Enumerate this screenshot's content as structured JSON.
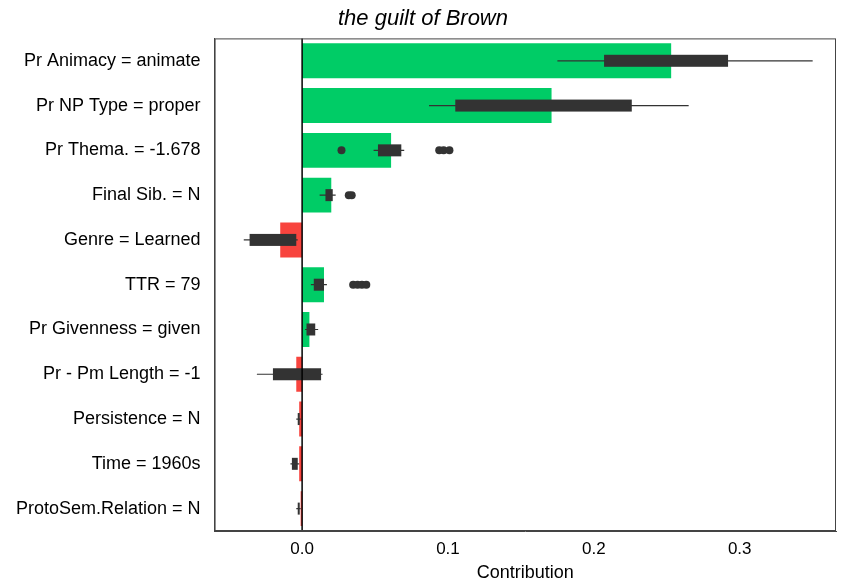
{
  "chart_data": {
    "type": "bar",
    "orientation": "horizontal",
    "title": "the guilt of Brown",
    "x_label": "Contribution",
    "categories": [
      "Pr Animacy = animate",
      "Pr NP Type = proper",
      "Pr Thema. = -1.678",
      "Final Sib. = N",
      "Genre = Learned",
      "TTR = 79",
      "Pr Givenness = given",
      "Pr - Pm Length = -1",
      "Persistence = N",
      "Time = 1960s",
      "ProtoSem.Relation = N"
    ],
    "values": [
      0.253,
      0.171,
      0.061,
      0.02,
      -0.015,
      0.015,
      0.005,
      -0.004,
      -0.002,
      -0.002,
      -0.001
    ],
    "colors": [
      "#00cc66",
      "#00cc66",
      "#00cc66",
      "#00cc66",
      "#f8443e",
      "#00cc66",
      "#00cc66",
      "#f8443e",
      "#f8443e",
      "#f8443e",
      "#f8443e"
    ],
    "whisker_low": [
      0.175,
      0.087,
      0.049,
      0.012,
      -0.04,
      0.006,
      0.002,
      -0.031,
      -0.004,
      -0.008,
      -0.004
    ],
    "box_low": [
      0.207,
      0.105,
      0.052,
      0.016,
      -0.036,
      0.008,
      0.003,
      -0.02,
      -0.003,
      -0.007,
      -0.003
    ],
    "box_high": [
      0.292,
      0.226,
      0.068,
      0.021,
      -0.004,
      0.015,
      0.009,
      0.013,
      -0.002,
      -0.003,
      -0.002
    ],
    "whisker_high": [
      0.35,
      0.265,
      0.07,
      0.023,
      -0.003,
      0.017,
      0.011,
      0.014,
      -0.001,
      -0.002,
      -0.001
    ],
    "outliers": [
      [],
      [],
      [
        0.027,
        0.094,
        0.097,
        0.101
      ],
      [
        0.032,
        0.034
      ],
      [],
      [
        0.035,
        0.038,
        0.041,
        0.044
      ],
      [],
      [],
      [],
      [],
      []
    ],
    "xlim": [
      -0.06,
      0.366
    ],
    "xticks": [
      {
        "value": 0,
        "label": "0.0"
      },
      0.1,
      0.2,
      0.3
    ],
    "grid": false
  }
}
